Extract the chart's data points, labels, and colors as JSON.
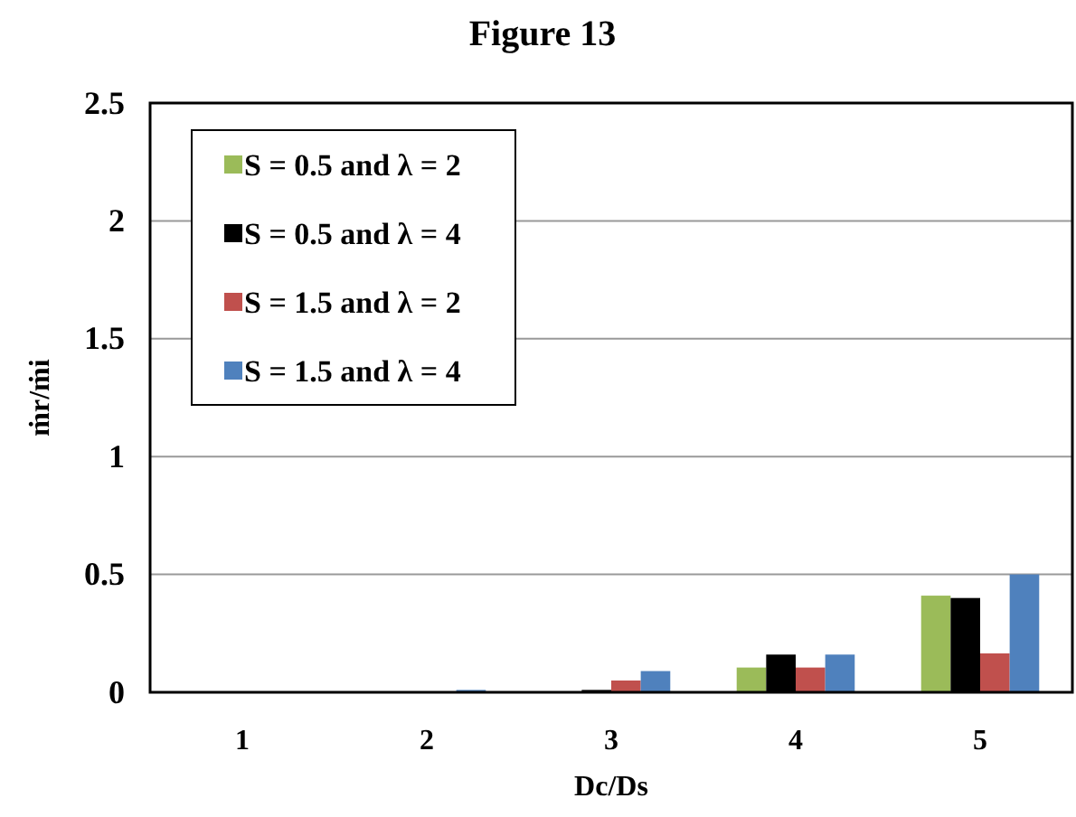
{
  "chart_data": {
    "type": "bar",
    "title": "Figure 13",
    "xlabel": "Dc/Ds",
    "ylabel": "ṁr/ṁi",
    "categories": [
      "1",
      "2",
      "3",
      "4",
      "5"
    ],
    "series": [
      {
        "name": "S = 0.5 and λ = 2",
        "color": "#9bbb59",
        "values": [
          0,
          0,
          0,
          0.105,
          0.41
        ]
      },
      {
        "name": "S = 0.5 and λ = 4",
        "color": "#000000",
        "values": [
          0,
          0,
          0.01,
          0.16,
          0.4
        ]
      },
      {
        "name": "S = 1.5 and λ = 2",
        "color": "#c0504d",
        "values": [
          0,
          0,
          0.05,
          0.105,
          0.165
        ]
      },
      {
        "name": "S = 1.5 and λ = 4",
        "color": "#4f81bd",
        "values": [
          0,
          0.01,
          0.09,
          0.16,
          0.5
        ]
      }
    ],
    "ylim": [
      0,
      2.5
    ],
    "yticks": [
      0,
      0.5,
      1,
      1.5,
      2,
      2.5
    ],
    "grid": "y",
    "legend": "top left"
  }
}
